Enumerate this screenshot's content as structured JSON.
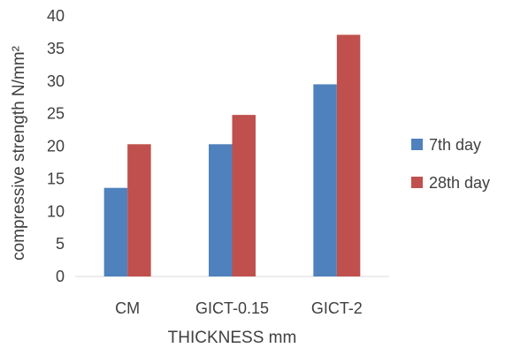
{
  "chart_data": {
    "type": "bar",
    "categories": [
      "CM",
      "GICT-0.15",
      "GICT-2"
    ],
    "series": [
      {
        "name": "7th day",
        "values": [
          13.6,
          20.3,
          29.5
        ],
        "color": "#4f81bd"
      },
      {
        "name": "28th day",
        "values": [
          20.3,
          24.8,
          37.1
        ],
        "color": "#c0504d"
      }
    ],
    "title": "",
    "xlabel": "THICKNESS mm",
    "ylabel": "compressive strength N/mm²",
    "ylim": [
      0,
      40
    ],
    "yticks": [
      0,
      5,
      10,
      15,
      20,
      25,
      30,
      35,
      40
    ],
    "grid": false,
    "legend_position": "right"
  }
}
